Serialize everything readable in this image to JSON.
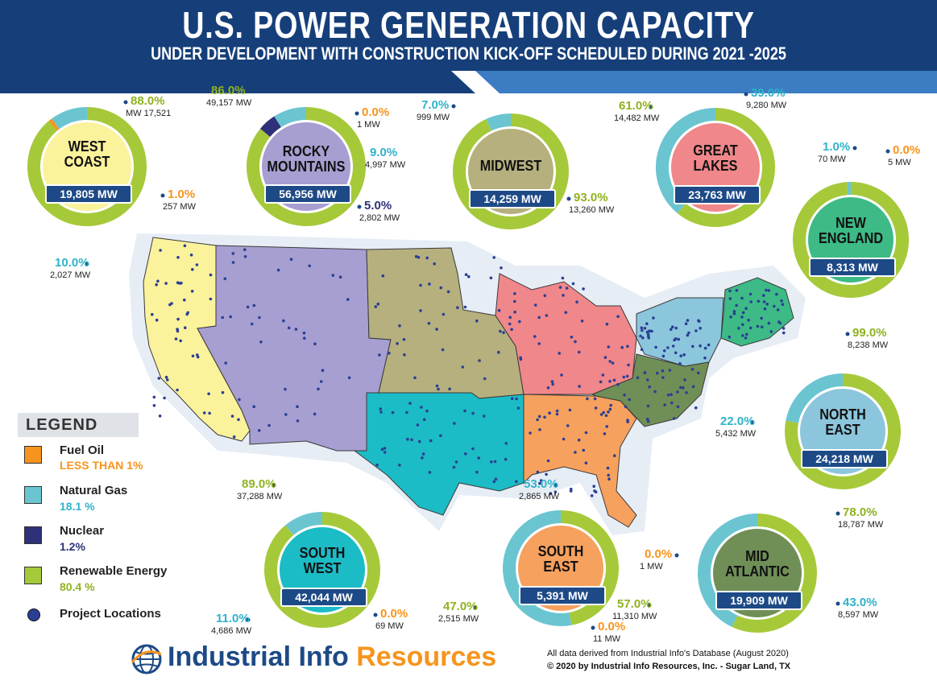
{
  "header": {
    "title": "U.S. POWER GENERATION CAPACITY",
    "subtitle": "UNDER DEVELOPMENT WITH CONSTRUCTION KICK-OFF SCHEDULED DURING 2021 -2025"
  },
  "colors": {
    "fuel_oil": "#f7941d",
    "natural_gas": "#6ac5d1",
    "nuclear": "#2e3079",
    "renewable": "#a6c93a",
    "project": "#2b3f94",
    "banner_dark": "#163f7a",
    "banner_light": "#3b7cc3",
    "pill": "#1d4a86"
  },
  "regions": [
    {
      "id": "west-coast",
      "name": "WEST\nCOAST",
      "total": "19,805 MW",
      "fill": "#fbf29c",
      "renewable": 88,
      "gas": 10,
      "fuel_oil": 1,
      "nuclear": 0,
      "labels": [
        {
          "pct": "88.0%",
          "mw": "MW 17,521",
          "kind": "renewable"
        },
        {
          "pct": "1.0%",
          "mw": "257 MW",
          "kind": "fuel_oil"
        },
        {
          "pct": "10.0%",
          "mw": "2,027 MW",
          "kind": "gas"
        }
      ]
    },
    {
      "id": "rocky-mountains",
      "name": "ROCKY\nMOUNTAINS",
      "total": "56,956 MW",
      "fill": "#a79fd1",
      "renewable": 86,
      "gas": 9,
      "fuel_oil": 0,
      "nuclear": 5,
      "labels": [
        {
          "pct": "86.0%",
          "mw": "49,157 MW",
          "kind": "renewable"
        },
        {
          "pct": "0.0%",
          "mw": "1 MW",
          "kind": "fuel_oil"
        },
        {
          "pct": "9.0%",
          "mw": "4,997 MW",
          "kind": "gas"
        },
        {
          "pct": "5.0%",
          "mw": "2,802 MW",
          "kind": "nuclear"
        }
      ]
    },
    {
      "id": "midwest",
      "name": "MIDWEST",
      "total": "14,259 MW",
      "fill": "#b5b07e",
      "renewable": 93,
      "gas": 7,
      "fuel_oil": 0,
      "nuclear": 0,
      "labels": [
        {
          "pct": "7.0%",
          "mw": "999 MW",
          "kind": "gas"
        },
        {
          "pct": "93.0%",
          "mw": "13,260 MW",
          "kind": "renewable"
        }
      ]
    },
    {
      "id": "great-lakes",
      "name": "GREAT\nLAKES",
      "total": "23,763 MW",
      "fill": "#f0878a",
      "renewable": 61,
      "gas": 39,
      "fuel_oil": 0,
      "nuclear": 0,
      "labels": [
        {
          "pct": "61.0%",
          "mw": "14,482 MW",
          "kind": "renewable"
        },
        {
          "pct": "39.0%",
          "mw": "9,280 MW",
          "kind": "gas"
        }
      ]
    },
    {
      "id": "new-england",
      "name": "NEW\nENGLAND",
      "total": "8,313 MW",
      "fill": "#3dba86",
      "renewable": 99,
      "gas": 1,
      "fuel_oil": 0,
      "nuclear": 0,
      "labels": [
        {
          "pct": "1.0%",
          "mw": "70 MW",
          "kind": "gas"
        },
        {
          "pct": "0.0%",
          "mw": "5 MW",
          "kind": "fuel_oil"
        },
        {
          "pct": "99.0%",
          "mw": "8,238 MW",
          "kind": "renewable"
        }
      ]
    },
    {
      "id": "north-east",
      "name": "NORTH\nEAST",
      "total": "24,218 MW",
      "fill": "#8cc6dd",
      "renewable": 78,
      "gas": 22,
      "fuel_oil": 0,
      "nuclear": 0,
      "labels": [
        {
          "pct": "22.0%",
          "mw": "5,432 MW",
          "kind": "gas"
        },
        {
          "pct": "78.0%",
          "mw": "18,787 MW",
          "kind": "renewable"
        }
      ]
    },
    {
      "id": "south-west",
      "name": "SOUTH\nWEST",
      "total": "42,044 MW",
      "fill": "#1bbcc5",
      "renewable": 89,
      "gas": 11,
      "fuel_oil": 0,
      "nuclear": 0,
      "labels": [
        {
          "pct": "89.0%",
          "mw": "37,288 MW",
          "kind": "renewable"
        },
        {
          "pct": "11.0%",
          "mw": "4,686 MW",
          "kind": "gas"
        },
        {
          "pct": "0.0%",
          "mw": "69 MW",
          "kind": "fuel_oil"
        }
      ]
    },
    {
      "id": "south-east",
      "name": "SOUTH\nEAST",
      "total": "5,391 MW",
      "fill": "#f7a15f",
      "renewable": 47,
      "gas": 53,
      "fuel_oil": 0,
      "nuclear": 0,
      "labels": [
        {
          "pct": "53.0%",
          "mw": "2,865 MW",
          "kind": "gas"
        },
        {
          "pct": "47.0%",
          "mw": "2,515 MW",
          "kind": "renewable"
        },
        {
          "pct": "0.0%",
          "mw": "11 MW",
          "kind": "fuel_oil"
        }
      ]
    },
    {
      "id": "mid-atlantic",
      "name": "MID\nATLANTIC",
      "total": "19,909 MW",
      "fill": "#6f8f57",
      "renewable": 57,
      "gas": 43,
      "fuel_oil": 0,
      "nuclear": 0,
      "labels": [
        {
          "pct": "0.0%",
          "mw": "1 MW",
          "kind": "fuel_oil"
        },
        {
          "pct": "57.0%",
          "mw": "11,310 MW",
          "kind": "renewable"
        },
        {
          "pct": "43.0%",
          "mw": "8,597 MW",
          "kind": "gas"
        }
      ]
    }
  ],
  "legend": {
    "title": "LEGEND",
    "items": [
      {
        "name": "Fuel Oil",
        "value": "LESS THAN 1%",
        "kind": "fuel_oil"
      },
      {
        "name": "Natural Gas",
        "value": "18.1 %",
        "kind": "gas"
      },
      {
        "name": "Nuclear",
        "value": "1.2%",
        "kind": "nuclear"
      },
      {
        "name": "Renewable Energy",
        "value": "80.4 %",
        "kind": "renewable"
      },
      {
        "name": "Project Locations",
        "value": "",
        "kind": "project"
      }
    ]
  },
  "brand": {
    "part1": "Industrial Info",
    "part2": "Resources"
  },
  "footer": {
    "source": "All data derived from Industrial Info's Database (August 2020)",
    "copyright": "© 2020 by Industrial Info Resources, Inc. - Sugar Land, TX"
  }
}
